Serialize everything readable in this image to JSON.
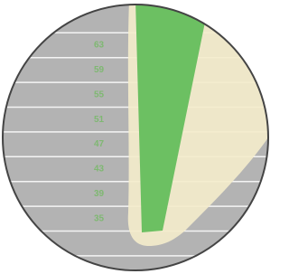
{
  "scale": {
    "labels": [
      63,
      59,
      55,
      51,
      47,
      43,
      39,
      35
    ]
  }
}
